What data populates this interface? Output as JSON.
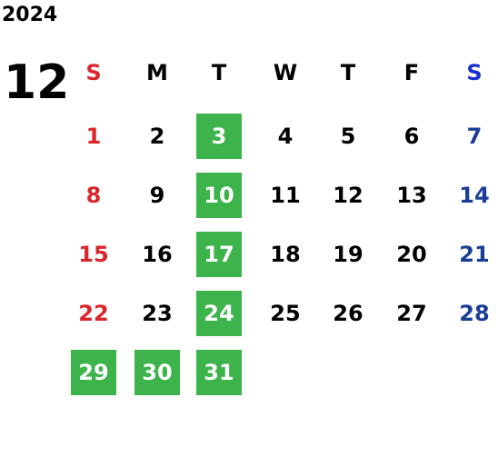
{
  "year": "2024",
  "month": "12",
  "weekdays": [
    "S",
    "M",
    "T",
    "W",
    "T",
    "F",
    "S"
  ],
  "weeks": [
    [
      1,
      2,
      3,
      4,
      5,
      6,
      7
    ],
    [
      8,
      9,
      10,
      11,
      12,
      13,
      14
    ],
    [
      15,
      16,
      17,
      18,
      19,
      20,
      21
    ],
    [
      22,
      23,
      24,
      25,
      26,
      27,
      28
    ],
    [
      29,
      30,
      31
    ]
  ],
  "highlighted_days": [
    3,
    10,
    17,
    24,
    29,
    30,
    31
  ],
  "highlight_color": "#3cb44b"
}
